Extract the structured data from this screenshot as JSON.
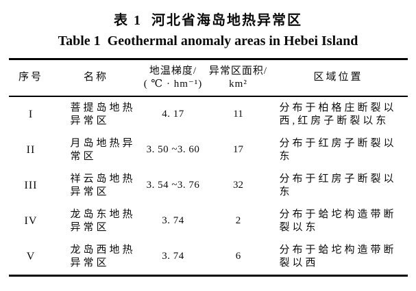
{
  "title": {
    "zh": "表 1  河北省海岛地热异常区",
    "en": "Table 1  Geothermal anomaly areas in Hebei Island"
  },
  "table": {
    "headers": {
      "no": "序号",
      "name": "名称",
      "gradient": "地温梯度/\n( ℃ · hm⁻¹)",
      "area": "异常区面积/\nkm²",
      "location": "区域位置"
    },
    "rows": [
      {
        "no": "I",
        "name": "菩提岛地热\n异常区",
        "gradient": "4. 17",
        "area": "11",
        "location": "分布于柏格庄断裂以\n西,红房子断裂以东"
      },
      {
        "no": "II",
        "name": "月岛地热异\n常区",
        "gradient": "3. 50 ~3. 60",
        "area": "17",
        "location": "分布于红房子断裂以\n东"
      },
      {
        "no": "III",
        "name": "祥云岛地热\n异常区",
        "gradient": "3. 54 ~3. 76",
        "area": "32",
        "location": "分布于红房子断裂以\n东"
      },
      {
        "no": "IV",
        "name": "龙岛东地热\n异常区",
        "gradient": "3. 74",
        "area": "2",
        "location": "分布于蛤坨构造带断\n裂以东"
      },
      {
        "no": "V",
        "name": "龙岛西地热\n异常区",
        "gradient": "3. 74",
        "area": "6",
        "location": "分布于蛤坨构造带断\n裂以西"
      }
    ]
  }
}
